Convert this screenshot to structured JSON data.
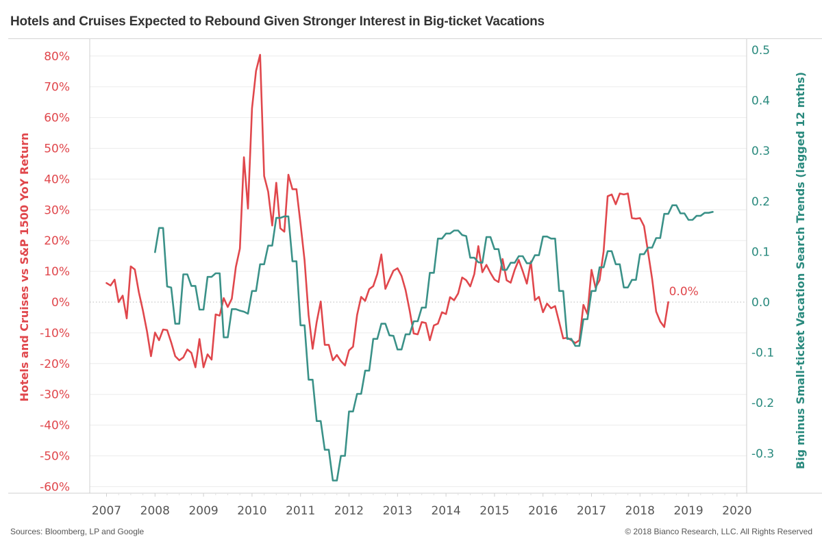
{
  "header": {
    "title": "Hotels and Cruises Expected to Rebound Given Stronger Interest in Big-ticket Vacations"
  },
  "footer": {
    "sources": "Sources: Bloomberg, LP and Google",
    "copyright": "© 2018 Bianco Research, LLC. All Rights Reserved"
  },
  "colors": {
    "red_series": "#e0474c",
    "teal_series": "#3a9188",
    "left_axis_text": "#e0474c",
    "right_axis_text": "#2a8a7e",
    "grid": "#ececec",
    "axis_line": "#cfcfcf",
    "x_tick_text": "#555555"
  },
  "chart_data": {
    "type": "line",
    "title": "Hotels and Cruises Expected to Rebound Given Stronger Interest in Big-ticket Vacations",
    "xlabel": "",
    "x_ticks": [
      "2007",
      "2008",
      "2009",
      "2010",
      "2011",
      "2012",
      "2013",
      "2014",
      "2015",
      "2016",
      "2017",
      "2018",
      "2019",
      "2020"
    ],
    "x_range": [
      "2006-09",
      "2020-04"
    ],
    "y_left": {
      "label": "Hotels and Cruises vs S&P 1500 YoY Return",
      "ticks": [
        "80%",
        "70%",
        "60%",
        "50%",
        "40%",
        "30%",
        "20%",
        "10%",
        "0%",
        "-10%",
        "-20%",
        "-30%",
        "-40%",
        "-50%",
        "-60%"
      ],
      "tick_values": [
        80,
        70,
        60,
        50,
        40,
        30,
        20,
        10,
        0,
        -10,
        -20,
        -30,
        -40,
        -50,
        -60
      ],
      "range": [
        -62,
        88
      ],
      "unit": "%"
    },
    "y_right": {
      "label": "Big minus Small-ticket Vacation Search Trends (lagged 12 mths)",
      "ticks": [
        "0.5",
        "0.4",
        "0.3",
        "0.2",
        "0.1",
        "0.0",
        "-0.1",
        "-0.2",
        "-0.3"
      ],
      "tick_values": [
        0.5,
        0.4,
        0.3,
        0.2,
        0.1,
        0.0,
        -0.1,
        -0.2,
        -0.3
      ],
      "range": [
        -0.38,
        0.54
      ]
    },
    "zero_line": "dotted",
    "grid": true,
    "series": [
      {
        "name": "Hotels and Cruises vs S&P 1500 YoY Return",
        "axis": "left",
        "frequency": "monthly",
        "start": "2007-01",
        "values": [
          6.2,
          5.4,
          7.3,
          0,
          2.1,
          -5.3,
          11.6,
          10.6,
          3.2,
          -2.7,
          -9.4,
          -17.6,
          -9.9,
          -12.4,
          -8.9,
          -9.1,
          -13.1,
          -17.6,
          -18.9,
          -18,
          -15.4,
          -16.5,
          -21.2,
          -12,
          -21.2,
          -17,
          -18.7,
          -4,
          -4.4,
          1.3,
          -1.6,
          1.1,
          11.4,
          17.4,
          47.1,
          30.4,
          63,
          75.2,
          80.4,
          41,
          35.9,
          24.9,
          38.8,
          24,
          22.9,
          41.4,
          36.7,
          36.7,
          25.5,
          13.6,
          -4.2,
          -15.2,
          -6.5,
          0.2,
          -13.9,
          -13.9,
          -18.9,
          -17.2,
          -19.2,
          -20.6,
          -15.7,
          -14.5,
          -4.2,
          1.7,
          0.4,
          4.2,
          5.2,
          9.1,
          15.5,
          4.3,
          7.3,
          10.2,
          11,
          8.5,
          3.9,
          -2.7,
          -10.2,
          -10.5,
          -6.5,
          -6.8,
          -12.4,
          -7.6,
          -7,
          -3.3,
          -3.9,
          1.6,
          0.6,
          2.8,
          8,
          7.1,
          5.1,
          9.1,
          18.2,
          9.7,
          12.1,
          9.5,
          7.3,
          6.5,
          14,
          7.1,
          6.3,
          10.5,
          13.7,
          10,
          6,
          13.2,
          0.6,
          1.7,
          -3.3,
          -0.5,
          -2,
          -1.3,
          -6.5,
          -11.8,
          -11.6,
          -12.4,
          -13.3,
          -12.4,
          -0.9,
          -3.9,
          10.5,
          4.7,
          7.1,
          16.5,
          34.4,
          35,
          31.8,
          35.3,
          35,
          35.3,
          27.3,
          27.1,
          27.3,
          24.7,
          16.2,
          7.6,
          -3.1,
          -6.3,
          -8.1,
          0.0
        ]
      },
      {
        "name": "Big minus Small-ticket Vacation Search Trends (lagged 12 mths)",
        "axis": "right",
        "frequency": "monthly",
        "start": "2008-01",
        "style": "step",
        "values": [
          0.099,
          0.147,
          0.147,
          0.031,
          0.029,
          -0.043,
          -0.043,
          0.055,
          0.055,
          0.032,
          0.032,
          -0.015,
          -0.015,
          0.05,
          0.05,
          0.057,
          0.057,
          -0.07,
          -0.07,
          -0.014,
          -0.014,
          -0.017,
          -0.019,
          -0.023,
          0.022,
          0.022,
          0.075,
          0.075,
          0.112,
          0.112,
          0.167,
          0.167,
          0.17,
          0.17,
          0.081,
          0.081,
          -0.046,
          -0.046,
          -0.154,
          -0.154,
          -0.236,
          -0.236,
          -0.293,
          -0.293,
          -0.354,
          -0.354,
          -0.305,
          -0.305,
          -0.217,
          -0.217,
          -0.182,
          -0.182,
          -0.136,
          -0.136,
          -0.073,
          -0.073,
          -0.043,
          -0.043,
          -0.066,
          -0.067,
          -0.094,
          -0.094,
          -0.064,
          -0.064,
          -0.038,
          -0.038,
          -0.011,
          -0.011,
          0.058,
          0.058,
          0.126,
          0.126,
          0.136,
          0.136,
          0.142,
          0.142,
          0.133,
          0.131,
          0.088,
          0.088,
          0.079,
          0.078,
          0.129,
          0.129,
          0.105,
          0.105,
          0.064,
          0.064,
          0.078,
          0.078,
          0.091,
          0.091,
          0.077,
          0.077,
          0.093,
          0.093,
          0.13,
          0.13,
          0.126,
          0.126,
          0.022,
          0.022,
          -0.073,
          -0.073,
          -0.087,
          -0.087,
          -0.034,
          -0.034,
          0.022,
          0.022,
          0.069,
          0.069,
          0.101,
          0.101,
          0.075,
          0.075,
          0.029,
          0.029,
          0.044,
          0.044,
          0.095,
          0.095,
          0.108,
          0.108,
          0.127,
          0.127,
          0.175,
          0.175,
          0.192,
          0.192,
          0.176,
          0.176,
          0.163,
          0.163,
          0.171,
          0.171,
          0.177,
          0.177,
          0.179
        ]
      }
    ],
    "annotations": [
      {
        "text": "0.0%",
        "series": 0,
        "at": "last"
      }
    ]
  }
}
